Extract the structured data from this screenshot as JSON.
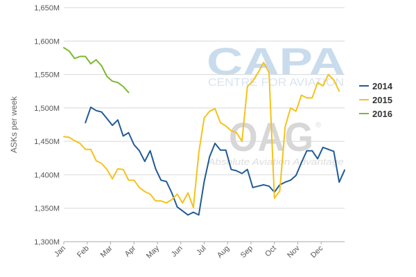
{
  "chart_data": {
    "type": "line",
    "title": "",
    "xlabel": "",
    "ylabel": "ASKs per week",
    "ylim": [
      1300,
      1650
    ],
    "y_ticks": [
      {
        "value": 1300,
        "label": "1,300M"
      },
      {
        "value": 1350,
        "label": "1,350M"
      },
      {
        "value": 1400,
        "label": "1,400M"
      },
      {
        "value": 1450,
        "label": "1,450M"
      },
      {
        "value": 1500,
        "label": "1,500M"
      },
      {
        "value": 1550,
        "label": "1,550M"
      },
      {
        "value": 1600,
        "label": "1,600M"
      },
      {
        "value": 1650,
        "label": "1,650M"
      }
    ],
    "x_ticks": [
      "Jan",
      "Feb",
      "Mar",
      "Apr",
      "May",
      "Jun",
      "Jul",
      "Aug",
      "Sep",
      "Oct",
      "Nov",
      "Dec"
    ],
    "x_range_weeks": [
      1,
      53
    ],
    "grid": true,
    "legend": "right",
    "series": [
      {
        "name": "2014",
        "color": "#1f5a96",
        "start_week": 5,
        "values": [
          1478,
          1501,
          1496,
          1494,
          1484,
          1474,
          1482,
          1458,
          1463,
          1445,
          1436,
          1420,
          1436,
          1409,
          1392,
          1390,
          1373,
          1352,
          1346,
          1340,
          1344,
          1340,
          1390,
          1427,
          1447,
          1437,
          1437,
          1408,
          1406,
          1402,
          1408,
          1381,
          1383,
          1385,
          1383,
          1374,
          1385,
          1389,
          1392,
          1399,
          1418,
          1436,
          1436,
          1424,
          1441,
          1438,
          1435,
          1389,
          1407
        ]
      },
      {
        "name": "2015",
        "color": "#f5c218",
        "start_week": 1,
        "values": [
          1457,
          1456,
          1451,
          1447,
          1438,
          1438,
          1421,
          1417,
          1408,
          1394,
          1409,
          1408,
          1392,
          1392,
          1381,
          1375,
          1371,
          1361,
          1361,
          1358,
          1363,
          1371,
          1358,
          1373,
          1351,
          1433,
          1485,
          1495,
          1499,
          1478,
          1473,
          1466,
          1463,
          1450,
          1532,
          1540,
          1553,
          1568,
          1553,
          1365,
          1376,
          1472,
          1500,
          1495,
          1519,
          1515,
          1515,
          1538,
          1533,
          1550,
          1542,
          1525
        ]
      },
      {
        "name": "2016",
        "color": "#7cb82f",
        "start_week": 1,
        "values": [
          1590,
          1585,
          1574,
          1577,
          1577,
          1566,
          1572,
          1563,
          1547,
          1540,
          1538,
          1532,
          1523
        ]
      }
    ]
  },
  "watermarks": {
    "capa_logo": "CAPA",
    "capa_tagline": "CENTRE FOR AVIATION",
    "oag_logo": "OAG",
    "oag_registered": "®",
    "oag_tagline": "Absolute Aviation Advantage"
  }
}
